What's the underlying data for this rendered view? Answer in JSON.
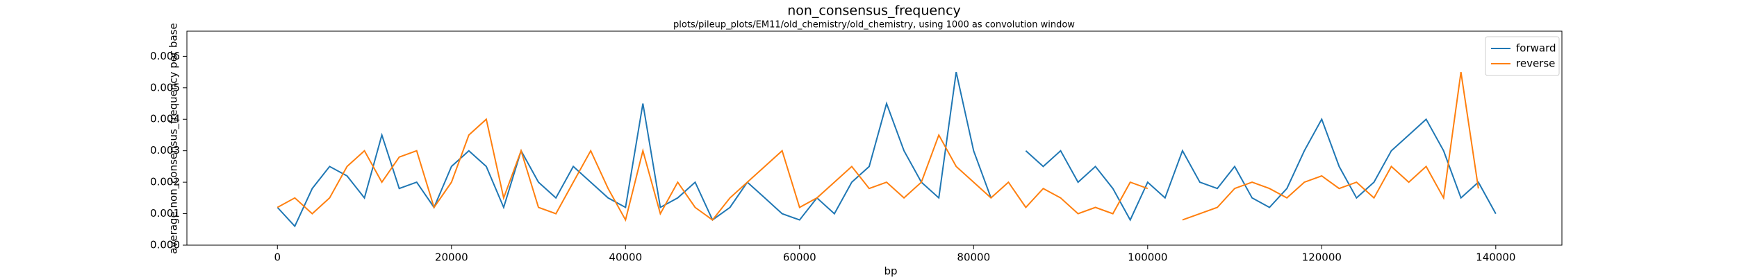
{
  "chart_data": {
    "type": "line",
    "title": "non_consensus_frequency",
    "subtitle": "plots/pileup_plots/EM11/old_chemistry/old_chemistry, using 1000 as convolution window",
    "x_label": "bp",
    "y_label": "average non_consensus_frequency per base",
    "x": [
      0,
      2000,
      4000,
      6000,
      8000,
      10000,
      12000,
      14000,
      16000,
      18000,
      20000,
      22000,
      24000,
      26000,
      28000,
      30000,
      32000,
      34000,
      36000,
      38000,
      40000,
      42000,
      44000,
      46000,
      48000,
      50000,
      52000,
      54000,
      56000,
      58000,
      60000,
      62000,
      64000,
      66000,
      68000,
      70000,
      72000,
      74000,
      76000,
      78000,
      80000,
      82000,
      84000,
      86000,
      88000,
      90000,
      92000,
      94000,
      96000,
      98000,
      100000,
      102000,
      104000,
      106000,
      108000,
      110000,
      112000,
      114000,
      116000,
      118000,
      120000,
      122000,
      124000,
      126000,
      128000,
      130000,
      132000,
      134000,
      136000,
      138000,
      140000
    ],
    "series": [
      {
        "name": "forward",
        "color": "#1f77b4",
        "values": [
          0.0012,
          0.0006,
          0.0018,
          0.0025,
          0.0022,
          0.0015,
          0.0035,
          0.0018,
          0.002,
          0.0012,
          0.0025,
          0.003,
          0.0025,
          0.0012,
          0.003,
          0.002,
          0.0015,
          0.0025,
          0.002,
          0.0015,
          0.0012,
          0.0045,
          0.0012,
          0.0015,
          0.002,
          0.0008,
          0.0012,
          0.002,
          0.0015,
          0.001,
          0.0008,
          0.0015,
          0.001,
          0.002,
          0.0025,
          0.0045,
          0.003,
          0.002,
          0.0015,
          0.0055,
          0.003,
          0.0015,
          null,
          0.003,
          0.0025,
          0.003,
          0.002,
          0.0025,
          0.0018,
          0.0008,
          0.002,
          0.0015,
          0.003,
          0.002,
          0.0018,
          0.0025,
          0.0015,
          0.0012,
          0.0018,
          0.003,
          0.004,
          0.0025,
          0.0015,
          0.002,
          0.003,
          0.0035,
          0.004,
          0.003,
          0.0015,
          0.002,
          0.001
        ]
      },
      {
        "name": "reverse",
        "color": "#ff7f0e",
        "values": [
          0.0012,
          0.0015,
          0.001,
          0.0015,
          0.0025,
          0.003,
          0.002,
          0.0028,
          0.003,
          0.0012,
          0.002,
          0.0035,
          0.004,
          0.0015,
          0.003,
          0.0012,
          0.001,
          0.002,
          0.003,
          0.0018,
          0.0008,
          0.003,
          0.001,
          0.002,
          0.0012,
          0.0008,
          0.0015,
          0.002,
          0.0025,
          0.003,
          0.0012,
          0.0015,
          0.002,
          0.0025,
          0.0018,
          0.002,
          0.0015,
          0.002,
          0.0035,
          0.0025,
          0.002,
          0.0015,
          0.002,
          0.0012,
          0.0018,
          0.0015,
          0.001,
          0.0012,
          0.001,
          0.002,
          0.0018,
          null,
          0.0008,
          0.001,
          0.0012,
          0.0018,
          0.002,
          0.0018,
          0.0015,
          0.002,
          0.0022,
          0.0018,
          0.002,
          0.0015,
          0.0025,
          0.002,
          0.0025,
          0.0015,
          0.0055,
          0.0018,
          null
        ]
      }
    ],
    "xlim": [
      -10400,
      147600
    ],
    "ylim": [
      0,
      0.0068
    ],
    "xticks": [
      0,
      20000,
      40000,
      60000,
      80000,
      100000,
      120000,
      140000
    ],
    "yticks": [
      {
        "value": 0,
        "label": "0.000"
      },
      0.001,
      0.002,
      0.003,
      0.004,
      0.005,
      0.006
    ],
    "legend": "upper right"
  }
}
